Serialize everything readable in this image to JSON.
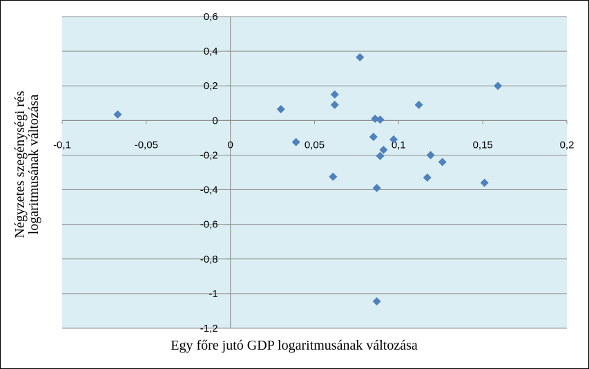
{
  "chart_data": {
    "type": "scatter",
    "title": "",
    "xlabel": "Egy főre jutó GDP logaritmusának változása",
    "ylabel_lines": [
      "Négyzetes szegénységi rés",
      "logaritmusának változása"
    ],
    "xlim": [
      -0.1,
      0.2
    ],
    "ylim": [
      -1.2,
      0.6
    ],
    "xticks": [
      {
        "value": -0.1,
        "label": "-0,1"
      },
      {
        "value": -0.05,
        "label": "-0,05"
      },
      {
        "value": 0,
        "label": "0"
      },
      {
        "value": 0.05,
        "label": "0,05"
      },
      {
        "value": 0.1,
        "label": "0,1"
      },
      {
        "value": 0.15,
        "label": "0,15"
      },
      {
        "value": 0.2,
        "label": "0,2"
      }
    ],
    "yticks": [
      {
        "value": 0.6,
        "label": "0,6"
      },
      {
        "value": 0.4,
        "label": "0,4"
      },
      {
        "value": 0.2,
        "label": "0,2"
      },
      {
        "value": 0,
        "label": "0"
      },
      {
        "value": -0.2,
        "label": "-0,2"
      },
      {
        "value": -0.4,
        "label": "-0,4"
      },
      {
        "value": -0.6,
        "label": "-0,6"
      },
      {
        "value": -0.8,
        "label": "-0,8"
      },
      {
        "value": -1,
        "label": "-1"
      },
      {
        "value": -1.2,
        "label": "-1,2"
      }
    ],
    "grid": "horizontal",
    "plot_background": "#dbeef3",
    "marker_color": "#4f81bd",
    "marker": "diamond",
    "points": [
      {
        "x": -0.067,
        "y": 0.035
      },
      {
        "x": 0.03,
        "y": 0.065
      },
      {
        "x": 0.039,
        "y": -0.125
      },
      {
        "x": 0.061,
        "y": -0.325
      },
      {
        "x": 0.062,
        "y": 0.15
      },
      {
        "x": 0.062,
        "y": 0.09
      },
      {
        "x": 0.077,
        "y": 0.365
      },
      {
        "x": 0.085,
        "y": -0.095
      },
      {
        "x": 0.086,
        "y": 0.01
      },
      {
        "x": 0.087,
        "y": -0.39
      },
      {
        "x": 0.089,
        "y": 0.005
      },
      {
        "x": 0.089,
        "y": -0.205
      },
      {
        "x": 0.091,
        "y": -0.17
      },
      {
        "x": 0.097,
        "y": -0.11
      },
      {
        "x": 0.087,
        "y": -1.045
      },
      {
        "x": 0.112,
        "y": 0.09
      },
      {
        "x": 0.117,
        "y": -0.33
      },
      {
        "x": 0.119,
        "y": -0.2
      },
      {
        "x": 0.126,
        "y": -0.24
      },
      {
        "x": 0.151,
        "y": -0.36
      },
      {
        "x": 0.159,
        "y": 0.2
      }
    ]
  }
}
